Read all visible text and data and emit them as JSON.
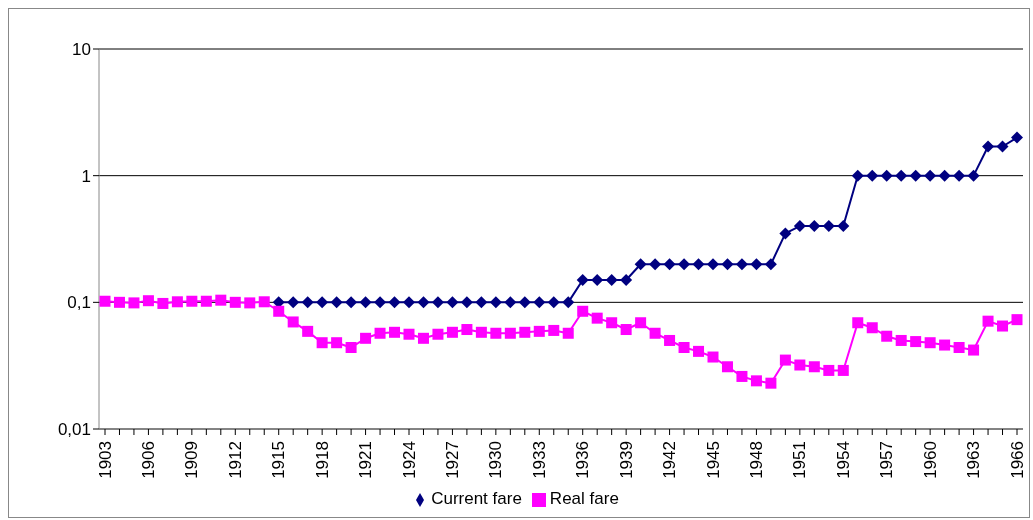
{
  "chart_data": {
    "type": "line",
    "categories": [
      "1903",
      null,
      null,
      "1906",
      null,
      null,
      "1909",
      null,
      null,
      "1912",
      null,
      null,
      "1915",
      null,
      null,
      "1918",
      null,
      null,
      "1921",
      null,
      null,
      "1924",
      null,
      null,
      "1927",
      null,
      null,
      "1930",
      null,
      null,
      "1933",
      null,
      null,
      "1936",
      null,
      null,
      "1939",
      null,
      null,
      "1942",
      null,
      null,
      "1945",
      null,
      null,
      "1948",
      null,
      null,
      "1951",
      null,
      null,
      "1954",
      null,
      null,
      "1957",
      null,
      null,
      "1960",
      null,
      null,
      "1963",
      null,
      null,
      "1966"
    ],
    "series": [
      {
        "name": "Current fare",
        "color": "#000080",
        "marker": "diamond",
        "values": [
          null,
          null,
          null,
          null,
          null,
          null,
          null,
          null,
          null,
          null,
          null,
          null,
          0.1,
          0.1,
          0.1,
          0.1,
          0.1,
          0.1,
          0.1,
          0.1,
          0.1,
          0.1,
          0.1,
          0.1,
          0.1,
          0.1,
          0.1,
          0.1,
          0.1,
          0.1,
          0.1,
          0.1,
          0.1,
          0.15,
          0.15,
          0.15,
          0.15,
          0.2,
          0.2,
          0.2,
          0.2,
          0.2,
          0.2,
          0.2,
          0.2,
          0.2,
          0.2,
          0.35,
          0.4,
          0.4,
          0.4,
          0.4,
          1,
          1,
          1,
          1,
          1,
          1,
          1,
          1,
          1,
          1.7,
          1.7,
          2
        ]
      },
      {
        "name": "Real fare",
        "color": "#ff00ff",
        "marker": "square",
        "values": [
          0.102,
          0.1,
          0.099,
          0.103,
          0.098,
          0.101,
          0.102,
          0.102,
          0.104,
          0.1,
          0.099,
          0.101,
          0.085,
          0.07,
          0.059,
          0.048,
          0.048,
          0.044,
          0.052,
          0.057,
          0.058,
          0.056,
          0.052,
          0.056,
          0.058,
          0.061,
          0.058,
          0.057,
          0.057,
          0.058,
          0.059,
          0.06,
          0.057,
          0.085,
          0.075,
          0.069,
          0.061,
          0.069,
          0.057,
          0.05,
          0.044,
          0.041,
          0.037,
          0.031,
          0.026,
          0.024,
          0.023,
          0.035,
          0.032,
          0.031,
          0.029,
          0.029,
          0.069,
          0.063,
          0.054,
          0.05,
          0.049,
          0.048,
          0.046,
          0.044,
          0.042,
          0.071,
          0.065,
          0.073
        ]
      }
    ],
    "log": "y",
    "ylim": [
      0.01,
      10
    ],
    "yticks": [
      {
        "value": 0.01,
        "label": "0,01"
      },
      {
        "value": 0.1,
        "label": "0,1"
      },
      1,
      10
    ],
    "grid": "y",
    "legend": "bottom",
    "line_style": "solid"
  }
}
